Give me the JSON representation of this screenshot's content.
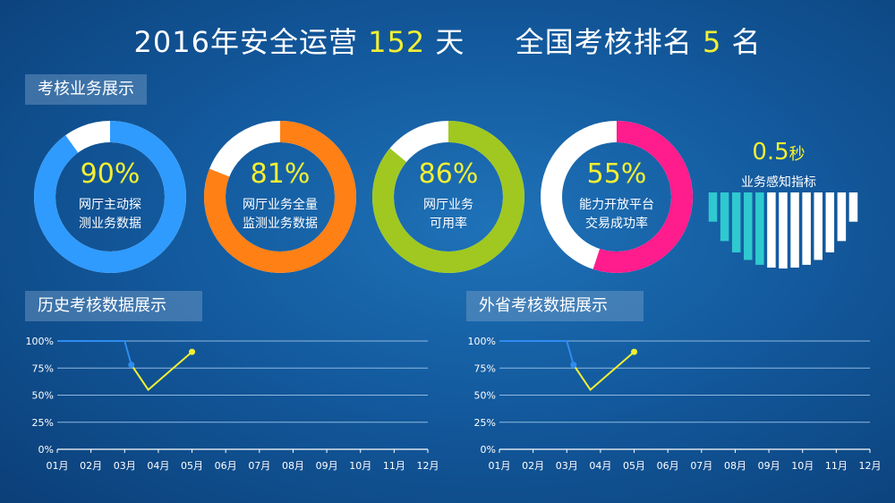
{
  "headline": {
    "prefix": "2016年安全运营",
    "days": "152",
    "days_unit": "天",
    "rank_prefix": "全国考核排名",
    "rank": "5",
    "rank_unit": "名"
  },
  "sections": {
    "kpi": "考核业务展示",
    "history": "历史考核数据展示",
    "province": "外省考核数据展示"
  },
  "kpis": [
    {
      "value": "90%",
      "fraction": 0.9,
      "color": "#2f9bff",
      "line1": "网厅主动探",
      "line2": "测业务数据"
    },
    {
      "value": "81%",
      "fraction": 0.81,
      "color": "#ff8015",
      "line1": "网厅业务全量",
      "line2": "监测业务数据"
    },
    {
      "value": "86%",
      "fraction": 0.86,
      "color": "#a0c820",
      "line1": "网厅业务",
      "line2": "可用率"
    },
    {
      "value": "55%",
      "fraction": 0.55,
      "color": "#ff1c8c",
      "line1": "能力开放平台",
      "line2": "交易成功率"
    }
  ],
  "speed": {
    "value": "0.5",
    "unit": "秒",
    "label": "业务感知指标"
  },
  "colors": {
    "yellow": "#f2ef33",
    "blue_line": "#2e8cf0",
    "grid": "#8fb8e0",
    "track": "#ffffff"
  },
  "chart_data": [
    {
      "type": "line",
      "title": "历史考核数据展示",
      "categories": [
        "01月",
        "02月",
        "03月",
        "04月",
        "05月",
        "06月",
        "07月",
        "08月",
        "09月",
        "10月",
        "11月",
        "12月"
      ],
      "yticks": [
        "0%",
        "25%",
        "50%",
        "75%",
        "100%"
      ],
      "ylim": [
        0,
        100
      ],
      "series": [
        {
          "color": "#2e8cf0",
          "points": [
            [
              0,
              100
            ],
            [
              1,
              100
            ],
            [
              2,
              100
            ],
            [
              2.2,
              78
            ]
          ]
        },
        {
          "color": "#f2ef33",
          "points": [
            [
              2.2,
              78
            ],
            [
              2.7,
              55
            ],
            [
              4.0,
              90
            ]
          ]
        }
      ],
      "grid": true
    },
    {
      "type": "line",
      "title": "外省考核数据展示",
      "categories": [
        "01月",
        "02月",
        "03月",
        "04月",
        "05月",
        "06月",
        "07月",
        "08月",
        "09月",
        "10月",
        "11月",
        "12月"
      ],
      "yticks": [
        "0%",
        "25%",
        "50%",
        "75%",
        "100%"
      ],
      "ylim": [
        0,
        100
      ],
      "series": [
        {
          "color": "#2e8cf0",
          "points": [
            [
              0,
              100
            ],
            [
              1,
              100
            ],
            [
              2,
              100
            ],
            [
              2.2,
              78
            ]
          ]
        },
        {
          "color": "#f2ef33",
          "points": [
            [
              2.2,
              78
            ],
            [
              2.7,
              55
            ],
            [
              4.0,
              90
            ]
          ]
        }
      ],
      "grid": true
    }
  ]
}
